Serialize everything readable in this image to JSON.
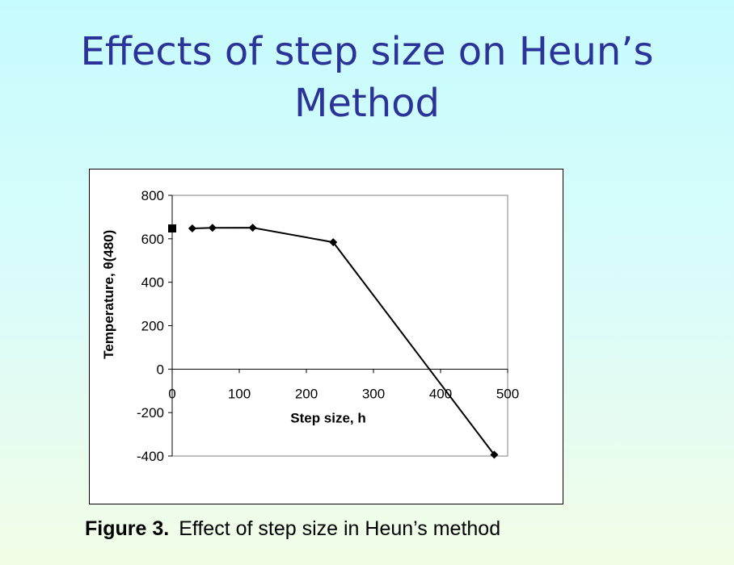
{
  "slide": {
    "title_line1": "Effects of step size on Heun’s",
    "title_line2": "Method",
    "caption_label": "Figure 3.",
    "caption_text": "Effect of step size in Heun’s method"
  },
  "colors": {
    "title": "#2b3399",
    "series": "#000000",
    "plot_border": "#808080"
  },
  "chart_data": {
    "type": "scatter",
    "xlabel": "Step size, h",
    "ylabel": "Temperature,  θ(480)",
    "xlim": [
      0,
      500
    ],
    "ylim": [
      -400,
      800
    ],
    "x_ticks": [
      0,
      100,
      200,
      300,
      400,
      500
    ],
    "y_ticks": [
      -400,
      -200,
      0,
      200,
      400,
      600,
      800
    ],
    "grid": false,
    "series": [
      {
        "marker": "diamond",
        "line": true,
        "points": [
          {
            "x": 30,
            "y": 647.57
          },
          {
            "x": 60,
            "y": 650.31
          },
          {
            "x": 120,
            "y": 651.0
          },
          {
            "x": 240,
            "y": 584.27
          },
          {
            "x": 480,
            "y": -393.87
          }
        ]
      },
      {
        "marker": "square",
        "line": false,
        "points": [
          {
            "x": 0,
            "y": 647.57
          }
        ]
      }
    ]
  }
}
